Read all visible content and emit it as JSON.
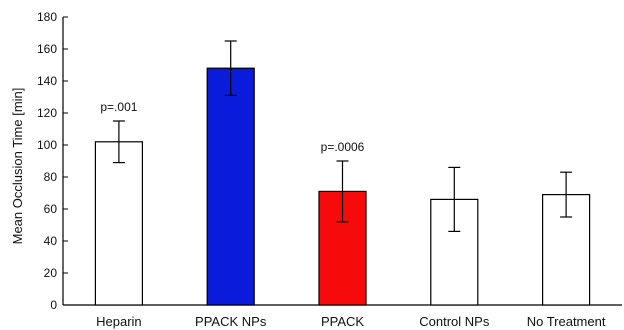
{
  "chart_data": {
    "type": "bar",
    "categories": [
      "Heparin",
      "PPACK NPs",
      "PPACK",
      "Control NPs",
      "No Treatment"
    ],
    "values": [
      102,
      148,
      71,
      66,
      69
    ],
    "error_low": [
      89,
      131,
      52,
      46,
      55
    ],
    "error_high": [
      115,
      165,
      90,
      86,
      83
    ],
    "colors": [
      "#ffffff",
      "#0a1bdc",
      "#f70a0a",
      "#ffffff",
      "#ffffff"
    ],
    "annotations": [
      {
        "category": "Heparin",
        "text": "p=.001"
      },
      {
        "category": "PPACK",
        "text": "p=.0006"
      }
    ],
    "ylabel": "Mean Occlusion Time [min]",
    "xlabel": "",
    "ylim": [
      0,
      180
    ],
    "yticks": [
      0,
      20,
      40,
      60,
      80,
      100,
      120,
      140,
      160,
      180
    ],
    "grid": false,
    "legend": "none"
  }
}
